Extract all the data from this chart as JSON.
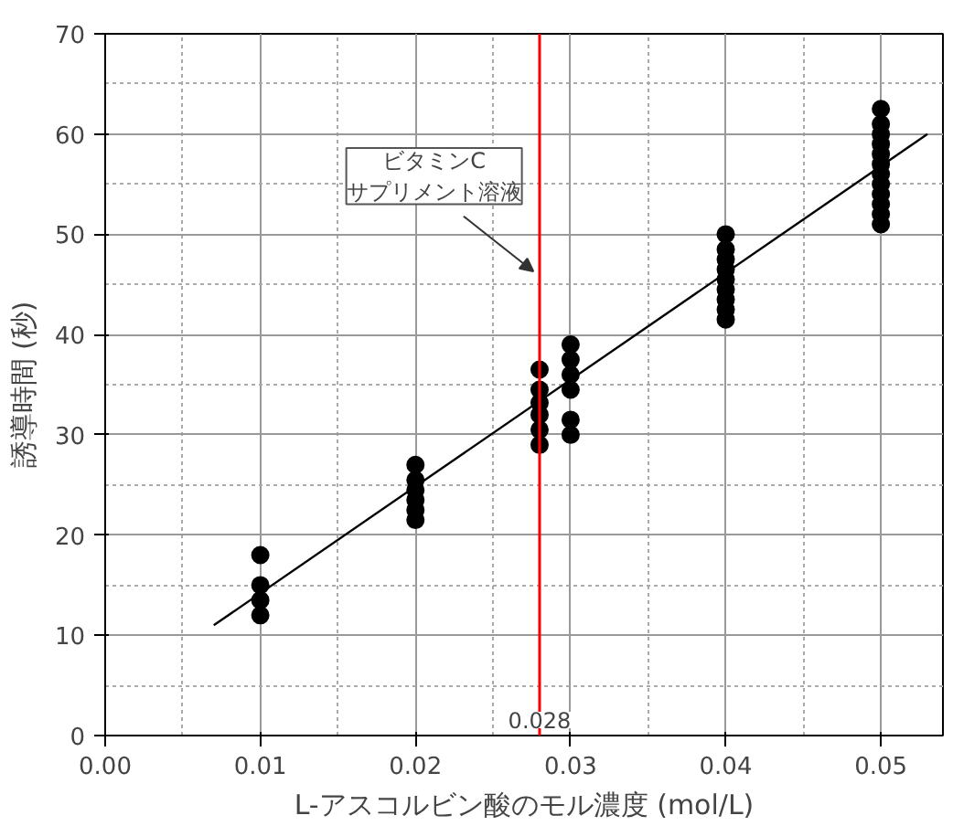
{
  "chart_data": {
    "type": "scatter",
    "xlabel": "L-アスコルビン酸のモル濃度 (mol/L)",
    "ylabel": "誘導時間 (秒)",
    "xlim": [
      0,
      0.054
    ],
    "ylim": [
      0,
      70
    ],
    "xticks": [
      {
        "value": 0,
        "label": "0.00"
      },
      {
        "value": 0.01,
        "label": "0.01"
      },
      {
        "value": 0.02,
        "label": "0.02"
      },
      {
        "value": 0.03,
        "label": "0.03"
      },
      {
        "value": 0.04,
        "label": "0.04"
      },
      {
        "value": 0.05,
        "label": "0.05"
      }
    ],
    "yticks": [
      0,
      10,
      20,
      30,
      40,
      50,
      60,
      70
    ],
    "grid": true,
    "series": [
      {
        "color": "#000000",
        "marker": "circle",
        "x": [
          0.01,
          0.01,
          0.01,
          0.01,
          0.02,
          0.02,
          0.02,
          0.02,
          0.02,
          0.02,
          0.028,
          0.028,
          0.028,
          0.028,
          0.028,
          0.028,
          0.03,
          0.03,
          0.03,
          0.03,
          0.03,
          0.03,
          0.04,
          0.04,
          0.04,
          0.04,
          0.04,
          0.04,
          0.04,
          0.04,
          0.04,
          0.05,
          0.05,
          0.05,
          0.05,
          0.05,
          0.05,
          0.05,
          0.05,
          0.05,
          0.05,
          0.05,
          0.05
        ],
        "values": [
          12,
          13.5,
          15,
          18,
          21.5,
          22.5,
          23.5,
          24.5,
          25.5,
          27,
          29,
          30.5,
          32,
          33.2,
          34.5,
          36.5,
          30,
          31.5,
          34.5,
          36,
          37.5,
          39,
          41.5,
          42.5,
          43.5,
          44.5,
          45.5,
          46.5,
          47.5,
          48.5,
          50,
          51,
          52,
          53,
          54,
          55,
          56,
          57,
          58,
          59,
          60,
          61,
          62.5
        ]
      },
      {
        "type": "line",
        "color": "#000000",
        "marker": "none",
        "x": [
          0.007,
          0.053
        ],
        "values": [
          11,
          60
        ]
      }
    ],
    "ref_lines": [
      {
        "axis": "x",
        "value": 0.028,
        "label": "0.028",
        "color": "#ff0000"
      }
    ],
    "annotations": [
      {
        "text": "ビタミンC\nサプリメント溶液",
        "x": 0.0276,
        "y": 46.3
      }
    ]
  }
}
